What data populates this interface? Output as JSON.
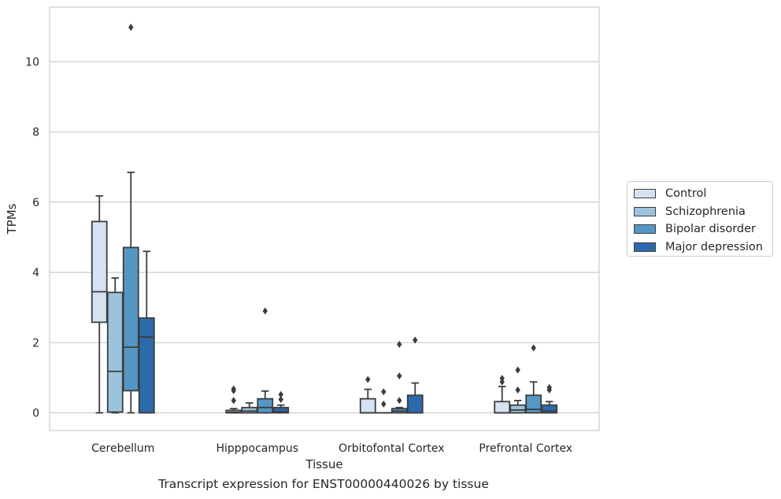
{
  "chart_data": {
    "type": "boxplot",
    "title": "",
    "caption": "Transcript expression for ENST00000440026 by tissue",
    "xlabel": "Tissue",
    "ylabel": "TPMs",
    "ylim": [
      -0.5,
      11.6
    ],
    "yticks": [
      0,
      2,
      4,
      6,
      8,
      10
    ],
    "grid": "horizontal",
    "legend_position": "right",
    "categories": [
      "Cerebellum",
      "Hipppocampus",
      "Orbitofontal Cortex",
      "Prefrontal Cortex"
    ],
    "series": [
      {
        "name": "Control",
        "color": "#d4e2f1",
        "boxes": [
          {
            "whislo": 0.0,
            "q1": 2.58,
            "med": 3.45,
            "q3": 5.45,
            "whishi": 6.18,
            "fliers": []
          },
          {
            "whislo": 0.0,
            "q1": 0.0,
            "med": 0.02,
            "q3": 0.07,
            "whishi": 0.12,
            "fliers": [
              0.35,
              0.63,
              0.68
            ]
          },
          {
            "whislo": 0.0,
            "q1": 0.0,
            "med": 0.0,
            "q3": 0.4,
            "whishi": 0.67,
            "fliers": [
              0.95
            ]
          },
          {
            "whislo": 0.0,
            "q1": 0.0,
            "med": 0.0,
            "q3": 0.32,
            "whishi": 0.75,
            "fliers": [
              0.88,
              0.98
            ]
          }
        ]
      },
      {
        "name": "Schizophrenia",
        "color": "#9ac3dd",
        "boxes": [
          {
            "whislo": 0.0,
            "q1": 0.02,
            "med": 1.18,
            "q3": 3.43,
            "whishi": 3.84,
            "fliers": []
          },
          {
            "whislo": 0.0,
            "q1": 0.0,
            "med": 0.05,
            "q3": 0.15,
            "whishi": 0.28,
            "fliers": []
          },
          {
            "whislo": 0.0,
            "q1": 0.0,
            "med": 0.0,
            "q3": 0.0,
            "whishi": 0.0,
            "fliers": [
              0.25,
              0.6
            ]
          },
          {
            "whislo": 0.0,
            "q1": 0.0,
            "med": 0.08,
            "q3": 0.22,
            "whishi": 0.35,
            "fliers": [
              0.65,
              1.22
            ]
          }
        ]
      },
      {
        "name": "Bipolar disorder",
        "color": "#5497c5",
        "boxes": [
          {
            "whislo": 0.0,
            "q1": 0.63,
            "med": 1.87,
            "q3": 4.71,
            "whishi": 6.85,
            "fliers": [
              10.98
            ]
          },
          {
            "whislo": 0.0,
            "q1": 0.0,
            "med": 0.15,
            "q3": 0.4,
            "whishi": 0.62,
            "fliers": [
              2.9
            ]
          },
          {
            "whislo": 0.0,
            "q1": 0.0,
            "med": 0.05,
            "q3": 0.12,
            "whishi": 0.15,
            "fliers": [
              0.35,
              1.05,
              1.95
            ]
          },
          {
            "whislo": 0.0,
            "q1": 0.0,
            "med": 0.1,
            "q3": 0.5,
            "whishi": 0.88,
            "fliers": [
              1.85
            ]
          }
        ]
      },
      {
        "name": "Major depression",
        "color": "#2a6aad",
        "boxes": [
          {
            "whislo": 0.0,
            "q1": 0.0,
            "med": 2.16,
            "q3": 2.7,
            "whishi": 4.6,
            "fliers": []
          },
          {
            "whislo": 0.0,
            "q1": 0.0,
            "med": 0.03,
            "q3": 0.15,
            "whishi": 0.22,
            "fliers": [
              0.38,
              0.52
            ]
          },
          {
            "whislo": 0.0,
            "q1": 0.0,
            "med": 0.0,
            "q3": 0.5,
            "whishi": 0.85,
            "fliers": [
              2.07
            ]
          },
          {
            "whislo": 0.0,
            "q1": 0.0,
            "med": 0.05,
            "q3": 0.22,
            "whishi": 0.32,
            "fliers": [
              0.65,
              0.72
            ]
          }
        ]
      }
    ]
  }
}
